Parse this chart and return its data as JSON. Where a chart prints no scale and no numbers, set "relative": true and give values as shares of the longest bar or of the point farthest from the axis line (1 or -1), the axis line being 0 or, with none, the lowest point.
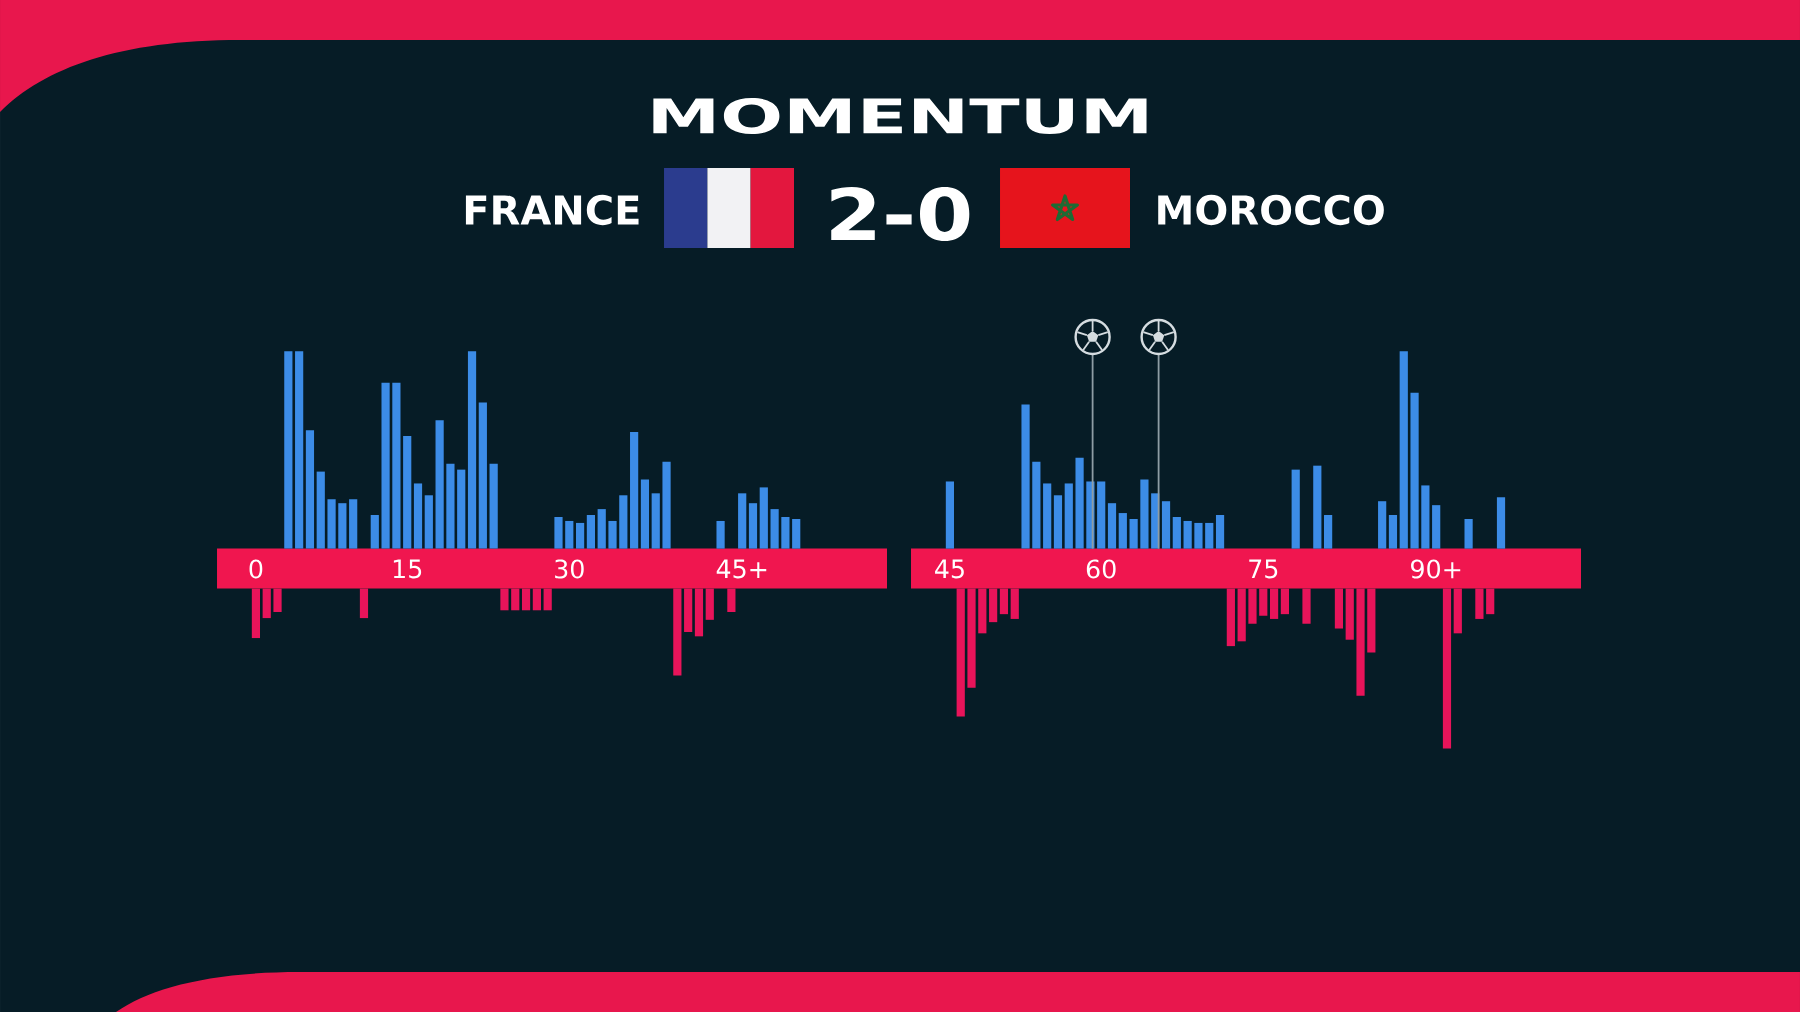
{
  "chart_data": [
    {
      "type": "bar",
      "title": "MOMENTUM",
      "annotations": [
        "FRANCE",
        "2-0",
        "MOROCCO"
      ],
      "relative": true,
      "categories": [
        "0",
        null,
        null,
        null,
        null,
        null,
        null,
        null,
        null,
        null,
        null,
        null,
        null,
        null,
        "15",
        null,
        null,
        null,
        null,
        null,
        null,
        null,
        null,
        null,
        null,
        null,
        null,
        null,
        null,
        "30",
        null,
        null,
        null,
        null,
        null,
        null,
        null,
        null,
        null,
        null,
        null,
        null,
        null,
        null,
        null,
        "45+",
        null,
        null,
        null,
        null,
        null
      ],
      "series": [
        {
          "color": "#3c8ce7",
          "values": [
            null,
            null,
            null,
            1.0,
            1.0,
            0.6,
            0.39,
            0.25,
            0.23,
            0.25,
            null,
            0.17,
            0.84,
            0.84,
            0.57,
            0.33,
            0.27,
            0.65,
            0.43,
            0.4,
            1.0,
            0.74,
            0.43,
            null,
            null,
            null,
            null,
            null,
            0.16,
            0.14,
            0.13,
            0.17,
            0.2,
            0.14,
            0.27,
            0.59,
            0.35,
            0.28,
            0.44,
            null,
            null,
            null,
            null,
            0.14,
            null,
            0.28,
            0.23,
            0.31,
            0.2,
            0.16,
            0.15
          ]
        }
      ]
    },
    {
      "type": "bar",
      "relative": true,
      "categories": [
        "45",
        null,
        null,
        null,
        null,
        null,
        null,
        null,
        null,
        null,
        null,
        null,
        null,
        null,
        "60",
        null,
        null,
        null,
        null,
        null,
        null,
        null,
        null,
        null,
        null,
        null,
        null,
        null,
        null,
        "75",
        null,
        null,
        null,
        null,
        null,
        null,
        null,
        null,
        null,
        null,
        null,
        null,
        null,
        null,
        null,
        "90+",
        null,
        null,
        null,
        null,
        null,
        null
      ],
      "series": [
        {
          "color": "#3c8ce7",
          "values": [
            0.34,
            null,
            null,
            null,
            null,
            null,
            null,
            0.73,
            0.44,
            0.33,
            0.27,
            0.33,
            0.46,
            0.34,
            0.34,
            0.23,
            0.18,
            0.15,
            0.35,
            0.28,
            0.24,
            0.16,
            0.14,
            0.13,
            0.13,
            0.17,
            null,
            null,
            null,
            null,
            null,
            null,
            0.4,
            null,
            0.42,
            0.17,
            null,
            null,
            null,
            null,
            0.24,
            0.17,
            1.0,
            0.79,
            0.32,
            0.22,
            null,
            null,
            0.15,
            null,
            null,
            0.26
          ]
        }
      ]
    },
    {
      "type": "bar",
      "relative": true,
      "categories": [
        null,
        null,
        null,
        null,
        null,
        null,
        null,
        null,
        null,
        null,
        null,
        null,
        null,
        null,
        null,
        null,
        null,
        null,
        null,
        null,
        null,
        null,
        null,
        null,
        null,
        null,
        null,
        null,
        null,
        null,
        null,
        null,
        null,
        null,
        null,
        null,
        null,
        null,
        null,
        null,
        null,
        null,
        null,
        null,
        null,
        null,
        null,
        null,
        null,
        null,
        null
      ],
      "series": [
        {
          "color": "#e8145a",
          "values": [
            -0.57,
            -0.34,
            -0.27,
            null,
            null,
            null,
            null,
            null,
            null,
            null,
            -0.34,
            null,
            null,
            null,
            null,
            null,
            null,
            null,
            null,
            null,
            null,
            null,
            null,
            -0.25,
            -0.25,
            -0.25,
            -0.25,
            -0.25,
            null,
            null,
            null,
            null,
            null,
            null,
            null,
            null,
            null,
            null,
            null,
            -1.0,
            -0.5,
            -0.55,
            -0.36,
            null,
            -0.27,
            null,
            null,
            null,
            null,
            null,
            null
          ]
        }
      ]
    },
    {
      "type": "bar",
      "relative": true,
      "categories": [
        null,
        null,
        null,
        null,
        null,
        null,
        null,
        null,
        null,
        null,
        null,
        null,
        null,
        null,
        null,
        null,
        null,
        null,
        null,
        null,
        null,
        null,
        null,
        null,
        null,
        null,
        null,
        null,
        null,
        null,
        null,
        null,
        null,
        null,
        null,
        null,
        null,
        null,
        null,
        null,
        null,
        null,
        null,
        null,
        null,
        null,
        null,
        null,
        null,
        null,
        null,
        null
      ],
      "series": [
        {
          "color": "#e8145a",
          "values": [
            null,
            -0.8,
            -0.62,
            -0.28,
            -0.21,
            -0.16,
            -0.19,
            null,
            null,
            null,
            null,
            null,
            null,
            null,
            null,
            null,
            null,
            null,
            null,
            null,
            null,
            null,
            null,
            null,
            null,
            null,
            -0.36,
            -0.33,
            -0.22,
            -0.17,
            -0.19,
            -0.16,
            null,
            -0.22,
            null,
            null,
            -0.25,
            -0.32,
            -0.67,
            -0.4,
            null,
            null,
            null,
            null,
            null,
            null,
            -1.0,
            -0.28,
            null,
            -0.19,
            -0.16,
            null
          ]
        }
      ]
    }
  ]
}
